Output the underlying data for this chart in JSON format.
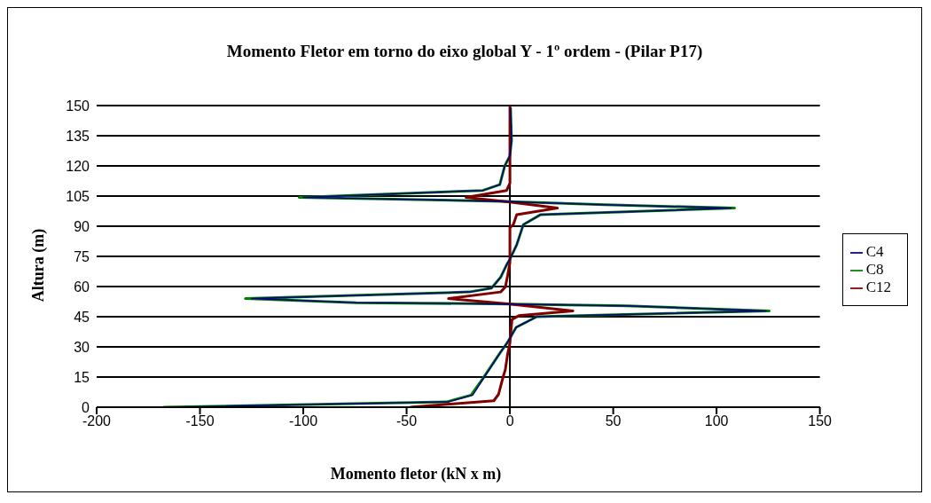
{
  "chart_data": {
    "type": "line",
    "title": "Momento Fletor em torno do eixo global Y - 1º ordem - (Pilar P17)",
    "xlabel": "Momento fletor (kN x m)",
    "ylabel": "Altura (m)",
    "xlim": [
      -200,
      150
    ],
    "xticks": [
      -200,
      -150,
      -100,
      -50,
      0,
      50,
      100,
      150
    ],
    "ylim": [
      0,
      150
    ],
    "yticks": [
      0,
      15,
      30,
      45,
      60,
      75,
      90,
      105,
      120,
      135,
      150
    ],
    "grid": "y",
    "legend": "right",
    "marker": "none",
    "line_style": "solid",
    "ref_lines": [
      {
        "axis": "x",
        "value": 0,
        "color": "#000000"
      }
    ],
    "series": [
      {
        "name": "C4",
        "color": "#000080",
        "x": [
          -165,
          -30,
          -18,
          -13,
          -4.5,
          -1.3,
          3,
          13,
          124,
          56,
          0,
          -74,
          -125,
          -19,
          -8.9,
          -4.5,
          -1.3,
          0,
          3.3,
          6.5,
          14.7,
          107,
          45,
          -3.3,
          -100,
          -13,
          -4.9,
          -2.5,
          0,
          0.8,
          0.3
        ],
        "values": [
          0,
          2.6,
          6,
          14,
          27.4,
          32,
          39.7,
          45,
          47.9,
          50.4,
          51.3,
          52,
          54,
          57.3,
          59.2,
          64.6,
          71.4,
          73.6,
          80.8,
          90.8,
          95.7,
          99,
          100.7,
          102.4,
          104.3,
          107.8,
          110.7,
          120,
          125,
          132.8,
          149
        ]
      },
      {
        "name": "C8",
        "color": "#008000",
        "x": [
          -167.6,
          -30.8,
          -18.8,
          -13.3,
          -4.5,
          -1.3,
          3,
          13,
          125.5,
          56.7,
          0,
          -74.5,
          -128,
          -19.8,
          -8.9,
          -4.5,
          -1.3,
          0,
          3.3,
          6.5,
          14.7,
          108.7,
          45.8,
          -3.3,
          -102,
          -13.1,
          -4.9,
          -2.5,
          0,
          0.8,
          0.3
        ],
        "values": [
          0,
          2.6,
          6,
          14,
          27.4,
          32,
          39.7,
          45,
          47.9,
          50.4,
          51.3,
          52,
          54,
          57.3,
          59.2,
          64.6,
          71.4,
          73.6,
          80.8,
          90.8,
          95.7,
          99,
          100.7,
          102.4,
          104.3,
          107.8,
          110.7,
          120,
          125,
          132.8,
          149
        ]
      },
      {
        "name": "C12",
        "color": "#800000",
        "x": [
          -48.3,
          -7.8,
          -5.5,
          -3.3,
          -2.2,
          -1.1,
          0,
          1,
          4.3,
          30.5,
          0,
          -29.7,
          -4.5,
          -2.2,
          -1.1,
          0,
          0,
          1.6,
          3.3,
          23,
          0,
          -21.2,
          -1.6,
          0,
          0
        ],
        "values": [
          0,
          3.2,
          6.4,
          15,
          18.8,
          26.5,
          32,
          43.6,
          45.5,
          47.9,
          51.3,
          54,
          57.3,
          59.8,
          65.5,
          72,
          89.3,
          90.7,
          95.7,
          99,
          102,
          104.3,
          107.8,
          111.5,
          150
        ]
      }
    ]
  }
}
